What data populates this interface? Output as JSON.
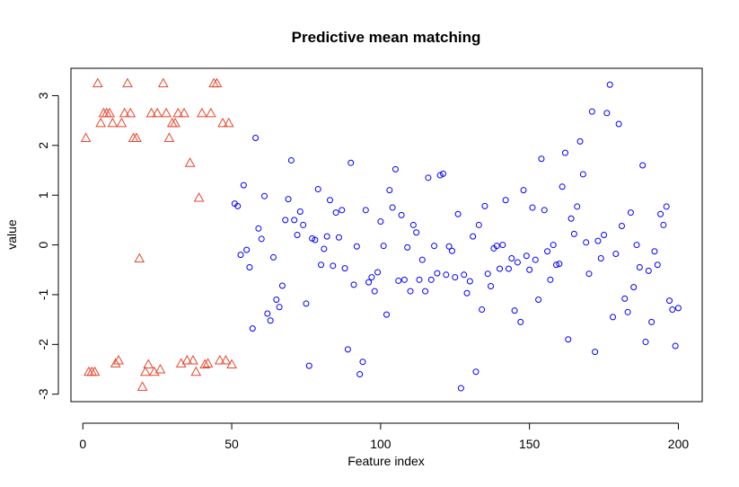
{
  "chart_data": {
    "type": "scatter",
    "title": "Predictive mean matching",
    "xlabel": "Feature index",
    "ylabel": "value",
    "xlim": [
      -4,
      208
    ],
    "ylim": [
      -3.15,
      3.55
    ],
    "x_ticks": [
      0,
      50,
      100,
      150,
      200
    ],
    "y_ticks": [
      -3,
      -2,
      -1,
      0,
      1,
      2,
      3
    ],
    "grid": false,
    "legend": "none",
    "series": [
      {
        "marker": "triangle",
        "color": "#e8452c",
        "points": [
          [
            1,
            2.15
          ],
          [
            2,
            -2.55
          ],
          [
            3,
            -2.55
          ],
          [
            4,
            -2.55
          ],
          [
            5,
            3.25
          ],
          [
            6,
            2.45
          ],
          [
            7,
            2.65
          ],
          [
            8,
            2.65
          ],
          [
            9,
            2.65
          ],
          [
            10,
            2.45
          ],
          [
            11,
            -2.38
          ],
          [
            12,
            -2.32
          ],
          [
            13,
            2.45
          ],
          [
            14,
            2.65
          ],
          [
            15,
            3.25
          ],
          [
            16,
            2.65
          ],
          [
            17,
            2.15
          ],
          [
            18,
            2.15
          ],
          [
            19,
            -0.27
          ],
          [
            20,
            -2.85
          ],
          [
            21,
            -2.55
          ],
          [
            22,
            -2.4
          ],
          [
            23,
            2.65
          ],
          [
            24,
            -2.55
          ],
          [
            25,
            2.65
          ],
          [
            26,
            -2.5
          ],
          [
            27,
            3.25
          ],
          [
            28,
            2.65
          ],
          [
            29,
            2.15
          ],
          [
            30,
            2.45
          ],
          [
            31,
            2.45
          ],
          [
            32,
            2.65
          ],
          [
            33,
            -2.38
          ],
          [
            34,
            2.65
          ],
          [
            35,
            -2.32
          ],
          [
            36,
            1.65
          ],
          [
            37,
            -2.32
          ],
          [
            38,
            -2.55
          ],
          [
            39,
            0.95
          ],
          [
            40,
            2.65
          ],
          [
            41,
            -2.4
          ],
          [
            42,
            -2.38
          ],
          [
            43,
            2.65
          ],
          [
            44,
            3.25
          ],
          [
            45,
            3.25
          ],
          [
            46,
            -2.32
          ],
          [
            47,
            2.45
          ],
          [
            48,
            -2.32
          ],
          [
            49,
            2.45
          ],
          [
            50,
            -2.4
          ]
        ]
      },
      {
        "marker": "circle",
        "color": "#0000ff",
        "points": [
          [
            51,
            0.83
          ],
          [
            52,
            0.78
          ],
          [
            53,
            -0.2
          ],
          [
            54,
            1.2
          ],
          [
            55,
            -0.1
          ],
          [
            56,
            -0.45
          ],
          [
            57,
            -1.68
          ],
          [
            58,
            2.15
          ],
          [
            59,
            0.33
          ],
          [
            60,
            0.12
          ],
          [
            61,
            0.98
          ],
          [
            62,
            -1.38
          ],
          [
            63,
            -1.52
          ],
          [
            64,
            -0.25
          ],
          [
            65,
            -1.1
          ],
          [
            66,
            -1.25
          ],
          [
            67,
            -0.82
          ],
          [
            68,
            0.5
          ],
          [
            69,
            0.92
          ],
          [
            70,
            1.7
          ],
          [
            71,
            0.5
          ],
          [
            72,
            0.2
          ],
          [
            73,
            0.67
          ],
          [
            74,
            0.4
          ],
          [
            75,
            -1.18
          ],
          [
            76,
            -2.43
          ],
          [
            77,
            0.13
          ],
          [
            78,
            0.1
          ],
          [
            79,
            1.12
          ],
          [
            80,
            -0.4
          ],
          [
            81,
            -0.08
          ],
          [
            82,
            0.17
          ],
          [
            83,
            0.9
          ],
          [
            84,
            -0.42
          ],
          [
            85,
            0.65
          ],
          [
            86,
            0.15
          ],
          [
            87,
            0.7
          ],
          [
            88,
            -0.47
          ],
          [
            89,
            -2.1
          ],
          [
            90,
            1.65
          ],
          [
            91,
            -0.8
          ],
          [
            92,
            -0.03
          ],
          [
            93,
            -2.6
          ],
          [
            94,
            -2.35
          ],
          [
            95,
            0.7
          ],
          [
            96,
            -0.75
          ],
          [
            97,
            -0.65
          ],
          [
            98,
            -0.93
          ],
          [
            99,
            -0.55
          ],
          [
            100,
            0.47
          ],
          [
            101,
            -0.02
          ],
          [
            102,
            -1.4
          ],
          [
            103,
            1.1
          ],
          [
            104,
            0.75
          ],
          [
            105,
            1.52
          ],
          [
            106,
            -0.72
          ],
          [
            107,
            0.6
          ],
          [
            108,
            -0.7
          ],
          [
            109,
            -0.05
          ],
          [
            110,
            -0.93
          ],
          [
            111,
            0.4
          ],
          [
            112,
            0.25
          ],
          [
            113,
            -0.7
          ],
          [
            114,
            -0.3
          ],
          [
            115,
            -0.93
          ],
          [
            116,
            1.35
          ],
          [
            117,
            -0.7
          ],
          [
            118,
            -0.02
          ],
          [
            119,
            -0.57
          ],
          [
            120,
            1.4
          ],
          [
            121,
            1.43
          ],
          [
            122,
            -0.6
          ],
          [
            123,
            -0.03
          ],
          [
            124,
            -0.12
          ],
          [
            125,
            -0.65
          ],
          [
            126,
            0.62
          ],
          [
            127,
            -2.88
          ],
          [
            128,
            -0.6
          ],
          [
            129,
            -0.97
          ],
          [
            130,
            -0.73
          ],
          [
            131,
            0.17
          ],
          [
            132,
            -2.55
          ],
          [
            133,
            0.4
          ],
          [
            134,
            -1.3
          ],
          [
            135,
            0.78
          ],
          [
            136,
            -0.58
          ],
          [
            137,
            -0.83
          ],
          [
            138,
            -0.07
          ],
          [
            139,
            -0.02
          ],
          [
            140,
            -0.48
          ],
          [
            141,
            0.0
          ],
          [
            142,
            0.9
          ],
          [
            143,
            -0.48
          ],
          [
            144,
            -0.27
          ],
          [
            145,
            -1.32
          ],
          [
            146,
            -0.35
          ],
          [
            147,
            -1.55
          ],
          [
            148,
            1.1
          ],
          [
            149,
            -0.22
          ],
          [
            150,
            -0.5
          ],
          [
            151,
            0.75
          ],
          [
            152,
            -0.3
          ],
          [
            153,
            -1.1
          ],
          [
            154,
            1.73
          ],
          [
            155,
            0.7
          ],
          [
            156,
            -0.13
          ],
          [
            157,
            -0.7
          ],
          [
            158,
            -0.0
          ],
          [
            159,
            -0.4
          ],
          [
            160,
            -0.38
          ],
          [
            161,
            1.17
          ],
          [
            162,
            1.85
          ],
          [
            163,
            -1.9
          ],
          [
            164,
            0.53
          ],
          [
            165,
            0.22
          ],
          [
            166,
            0.77
          ],
          [
            167,
            2.08
          ],
          [
            168,
            1.42
          ],
          [
            169,
            0.05
          ],
          [
            170,
            -0.58
          ],
          [
            171,
            2.68
          ],
          [
            172,
            -2.15
          ],
          [
            173,
            0.08
          ],
          [
            174,
            -0.27
          ],
          [
            175,
            0.2
          ],
          [
            176,
            2.65
          ],
          [
            177,
            3.22
          ],
          [
            178,
            -1.45
          ],
          [
            179,
            -0.18
          ],
          [
            180,
            2.43
          ],
          [
            181,
            0.38
          ],
          [
            182,
            -1.08
          ],
          [
            183,
            -1.35
          ],
          [
            184,
            0.65
          ],
          [
            185,
            -0.85
          ],
          [
            186,
            0.0
          ],
          [
            187,
            -0.45
          ],
          [
            188,
            1.6
          ],
          [
            189,
            -1.95
          ],
          [
            190,
            -0.52
          ],
          [
            191,
            -1.55
          ],
          [
            192,
            -0.13
          ],
          [
            193,
            -0.4
          ],
          [
            194,
            0.62
          ],
          [
            195,
            0.4
          ],
          [
            196,
            0.77
          ],
          [
            197,
            -1.12
          ],
          [
            198,
            -1.3
          ],
          [
            199,
            -2.03
          ],
          [
            200,
            -1.27
          ]
        ]
      }
    ]
  }
}
